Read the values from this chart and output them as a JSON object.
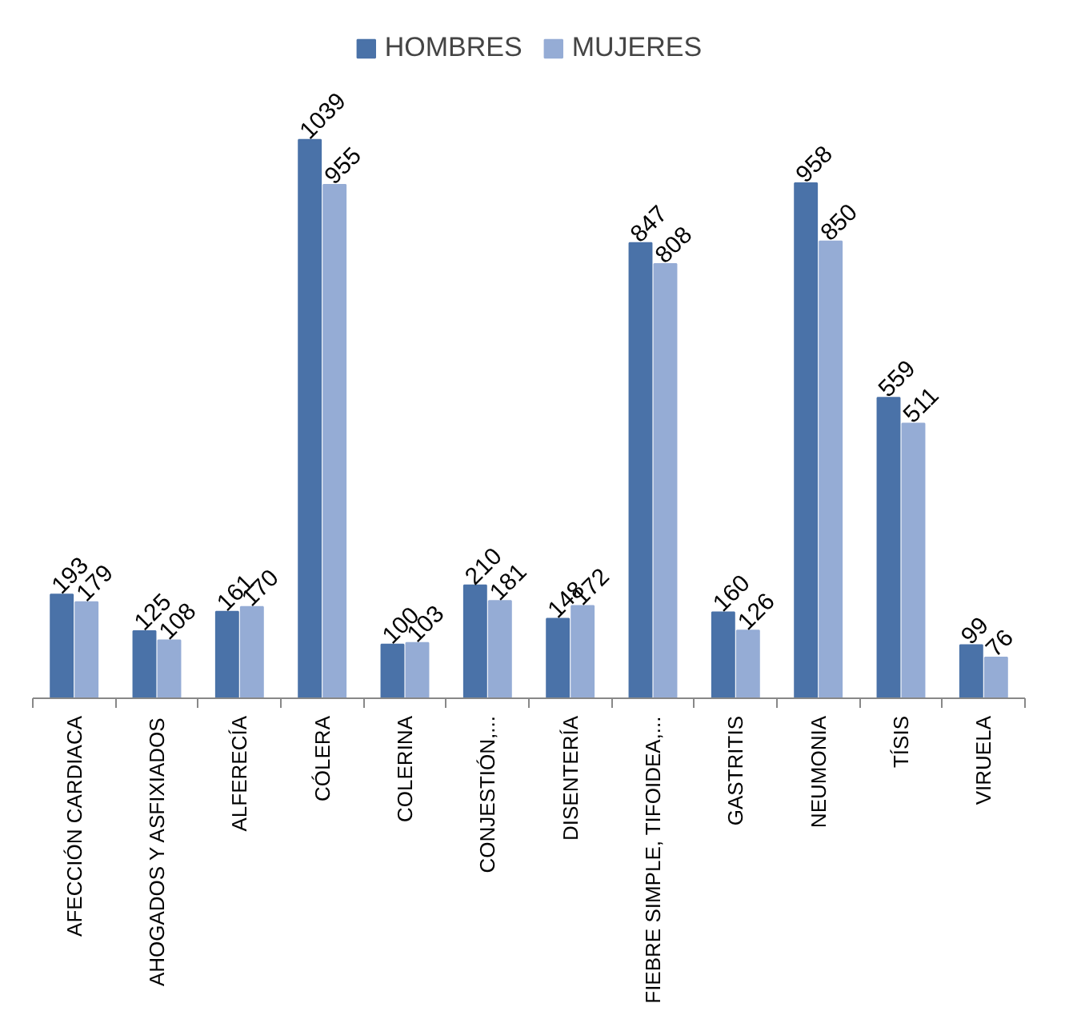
{
  "chart_data": {
    "type": "bar",
    "categories": [
      "AFECCIÓN CARDIACA",
      "AHOGADOS Y ASFIXIADOS",
      "ALFERECÍA",
      "CÓLERA",
      "COLERINA",
      "CONJESTIÓN,...",
      "DISENTERÍA",
      "FIEBRE SIMPLE, TIFOIDEA,...",
      "GASTRITIS",
      "NEUMONIA",
      "TÍSIS",
      "VIRUELA"
    ],
    "series": [
      {
        "name": "HOMBRES",
        "color": "#4a72a8",
        "values": [
          193,
          125,
          161,
          1039,
          100,
          210,
          148,
          847,
          160,
          958,
          559,
          99
        ]
      },
      {
        "name": "MUJERES",
        "color": "#95acd5",
        "values": [
          179,
          108,
          170,
          955,
          103,
          181,
          172,
          808,
          126,
          850,
          511,
          76
        ]
      }
    ],
    "data_labels": true,
    "legend": "top",
    "grid": false
  }
}
